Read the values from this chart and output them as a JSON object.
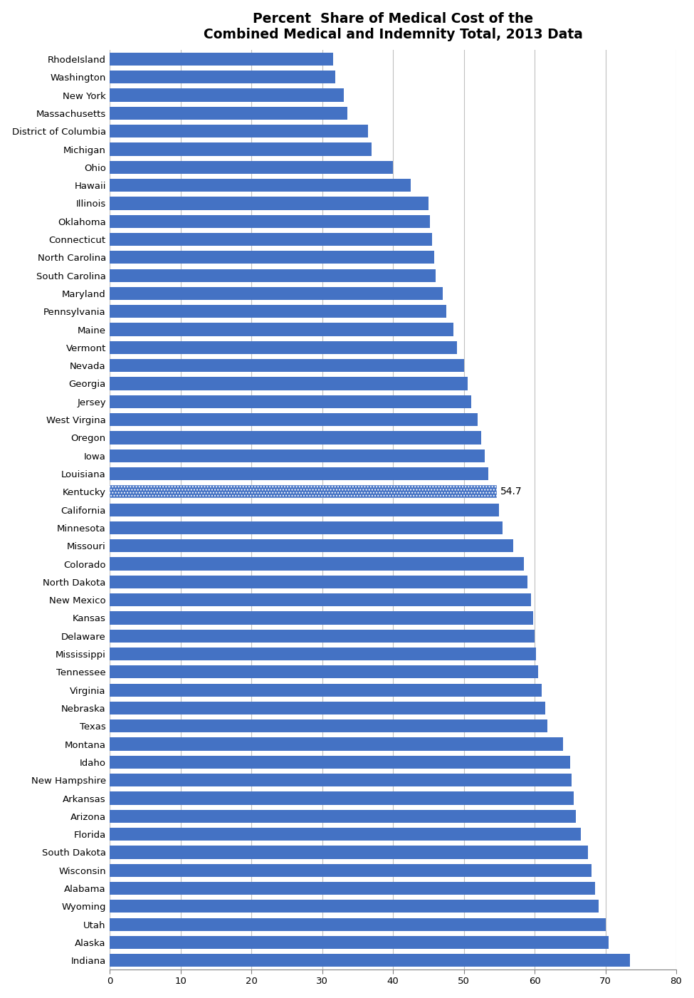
{
  "title": "Percent  Share of Medical Cost of the\nCombined Medical and Indemnity Total, 2013 Data",
  "categories": [
    "Indiana",
    "Alaska",
    "Utah",
    "Wyoming",
    "Alabama",
    "Wisconsin",
    "South Dakota",
    "Florida",
    "Arizona",
    "Arkansas",
    "New Hampshire",
    "Idaho",
    "Montana",
    "Texas",
    "Nebraska",
    "Virginia",
    "Tennessee",
    "Mississippi",
    "Delaware",
    "Kansas",
    "New Mexico",
    "North Dakota",
    "Colorado",
    "Missouri",
    "Minnesota",
    "California",
    "Kentucky",
    "Louisiana",
    "Iowa",
    "Oregon",
    "West Virgina",
    "Jersey",
    "Georgia",
    "Nevada",
    "Vermont",
    "Maine",
    "Pennsylvania",
    "Maryland",
    "South Carolina",
    "North Carolina",
    "Connecticut",
    "Oklahoma",
    "Illinois",
    "Hawaii",
    "Ohio",
    "Michigan",
    "District of Columbia",
    "Massachusetts",
    "New York",
    "Washington",
    "RhodeIsland"
  ],
  "values": [
    73.5,
    70.5,
    70.0,
    69.0,
    68.5,
    68.0,
    67.5,
    66.5,
    65.8,
    65.5,
    65.2,
    65.0,
    64.0,
    61.8,
    61.5,
    61.0,
    60.5,
    60.2,
    60.0,
    59.8,
    59.5,
    59.0,
    58.5,
    57.0,
    55.5,
    55.0,
    54.7,
    53.5,
    53.0,
    52.5,
    52.0,
    51.0,
    50.5,
    50.0,
    49.0,
    48.5,
    47.5,
    47.0,
    46.0,
    45.8,
    45.5,
    45.2,
    45.0,
    42.5,
    40.0,
    37.0,
    36.5,
    33.5,
    33.0,
    31.8,
    31.5
  ],
  "bar_color": "#4472C4",
  "kentucky_hatch": "....",
  "kentucky_label": "54.7",
  "xlim": [
    0,
    80
  ],
  "xticks": [
    0,
    10,
    20,
    30,
    40,
    50,
    60,
    70,
    80
  ],
  "figsize": [
    9.75,
    14.01
  ],
  "dpi": 100,
  "bar_height": 0.72,
  "grid_color": "#BFBFBF",
  "title_fontsize": 13.5,
  "tick_fontsize": 9.5
}
